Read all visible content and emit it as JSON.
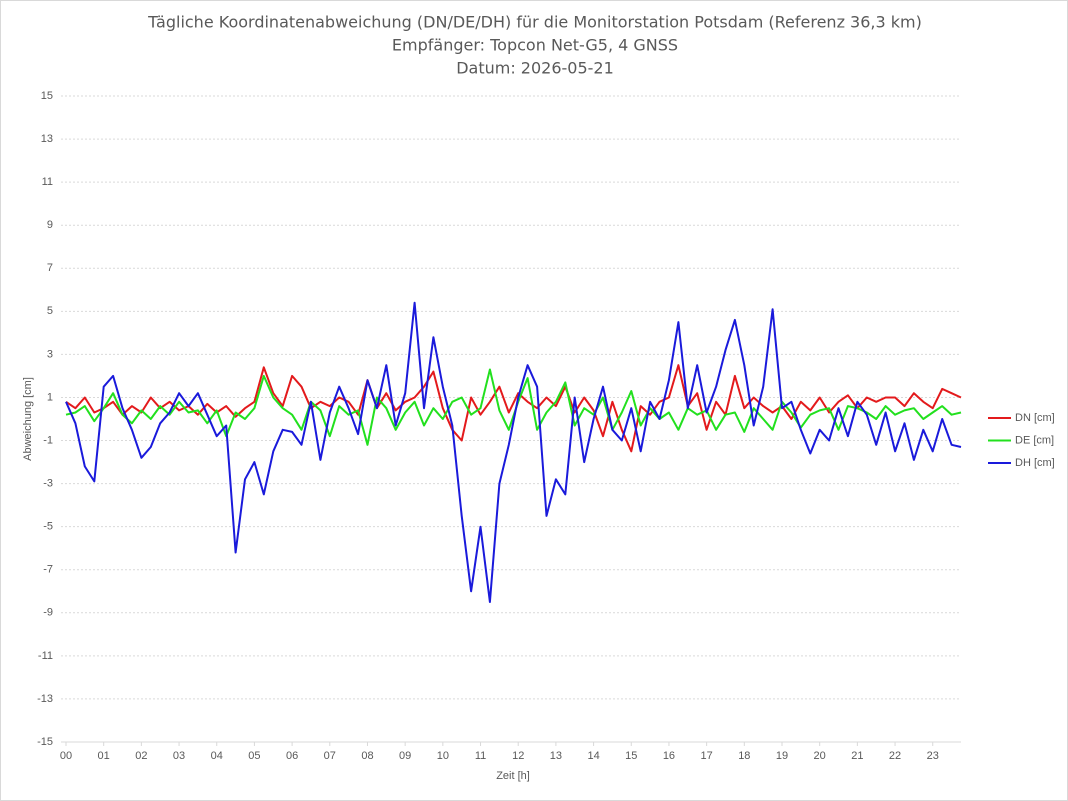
{
  "chart_data": {
    "type": "line",
    "title": "Tägliche Koordinatenabweichung (DN/DE/DH) für die Monitorstation Potsdam (Referenz 36,3 km)",
    "subtitle": "Empfänger: Topcon Net-G5, 4 GNSS",
    "date": "Datum: 2026-05-21",
    "x_label": "Zeit [h]",
    "y_label": "Abweichung [cm]",
    "xlim": [
      0,
      23.75
    ],
    "ylim": [
      -15,
      15
    ],
    "xticks": [
      {
        "value": 0,
        "label": "00"
      },
      {
        "value": 1,
        "label": "01"
      },
      {
        "value": 2,
        "label": "02"
      },
      {
        "value": 3,
        "label": "03"
      },
      {
        "value": 4,
        "label": "04"
      },
      {
        "value": 5,
        "label": "05"
      },
      {
        "value": 6,
        "label": "06"
      },
      {
        "value": 7,
        "label": "07"
      },
      {
        "value": 8,
        "label": "08"
      },
      {
        "value": 9,
        "label": "09"
      },
      10,
      11,
      12,
      13,
      14,
      15,
      16,
      17,
      18,
      19,
      20,
      21,
      22,
      23
    ],
    "yticks": [
      -15,
      -13,
      -11,
      -9,
      -7,
      -5,
      -3,
      -1,
      1,
      3,
      5,
      7,
      9,
      11,
      13,
      15
    ],
    "grid": true,
    "legend": "right",
    "x": [
      0,
      0.25,
      0.5,
      0.75,
      1,
      1.25,
      1.5,
      1.75,
      2,
      2.25,
      2.5,
      2.75,
      3,
      3.25,
      3.5,
      3.75,
      4,
      4.25,
      4.5,
      4.75,
      5,
      5.25,
      5.5,
      5.75,
      6,
      6.25,
      6.5,
      6.75,
      7,
      7.25,
      7.5,
      7.75,
      8,
      8.25,
      8.5,
      8.75,
      9,
      9.25,
      9.5,
      9.75,
      10,
      10.25,
      10.5,
      10.75,
      11,
      11.25,
      11.5,
      11.75,
      12,
      12.25,
      12.5,
      12.75,
      13,
      13.25,
      13.5,
      13.75,
      14,
      14.25,
      14.5,
      14.75,
      15,
      15.25,
      15.5,
      15.75,
      16,
      16.25,
      16.5,
      16.75,
      17,
      17.25,
      17.5,
      17.75,
      18,
      18.25,
      18.5,
      18.75,
      19,
      19.25,
      19.5,
      19.75,
      20,
      20.25,
      20.5,
      20.75,
      21,
      21.25,
      21.5,
      21.75,
      22,
      22.25,
      22.5,
      22.75,
      23,
      23.25,
      23.5,
      23.75
    ],
    "series": [
      {
        "name": "DN [cm]",
        "color": "#e31a1c",
        "values": [
          0.8,
          0.5,
          1.0,
          0.3,
          0.5,
          0.8,
          0.2,
          0.6,
          0.3,
          1.0,
          0.5,
          0.8,
          0.4,
          0.6,
          0.2,
          0.7,
          0.3,
          0.6,
          0.1,
          0.5,
          0.8,
          2.4,
          1.2,
          0.6,
          2.0,
          1.5,
          0.5,
          0.8,
          0.6,
          1.0,
          0.8,
          0.2,
          1.8,
          0.5,
          1.2,
          0.4,
          0.8,
          1.0,
          1.5,
          2.2,
          0.5,
          -0.5,
          -1.0,
          1.0,
          0.2,
          0.8,
          1.5,
          0.3,
          1.2,
          0.8,
          0.5,
          1.0,
          0.6,
          1.5,
          0.3,
          1.0,
          0.4,
          -0.8,
          0.8,
          -0.5,
          -1.5,
          0.6,
          0.2,
          0.8,
          1.0,
          2.5,
          0.6,
          1.2,
          -0.5,
          0.8,
          0.2,
          2.0,
          0.5,
          1.0,
          0.6,
          0.3,
          0.6,
          0.0,
          0.8,
          0.4,
          1.0,
          0.3,
          0.8,
          1.1,
          0.5,
          1.0,
          0.8,
          1.0,
          1.0,
          0.6,
          1.2,
          0.8,
          0.5,
          1.4,
          1.2,
          1.0
        ]
      },
      {
        "name": "DE [cm]",
        "color": "#22e01e",
        "values": [
          0.2,
          0.3,
          0.6,
          -0.1,
          0.5,
          1.2,
          0.2,
          -0.2,
          0.4,
          0.0,
          0.6,
          0.2,
          0.8,
          0.3,
          0.4,
          -0.2,
          0.4,
          -0.8,
          0.3,
          0.0,
          0.5,
          2.0,
          1.0,
          0.5,
          0.2,
          -0.5,
          0.8,
          0.4,
          -0.8,
          0.6,
          0.2,
          0.4,
          -1.2,
          1.0,
          0.5,
          -0.5,
          0.3,
          0.8,
          -0.3,
          0.5,
          0.0,
          0.8,
          1.0,
          0.2,
          0.5,
          2.3,
          0.4,
          -0.5,
          0.8,
          1.9,
          -0.5,
          0.3,
          0.8,
          1.7,
          -0.3,
          0.5,
          0.2,
          1.0,
          -0.5,
          0.3,
          1.3,
          -0.3,
          0.5,
          0.0,
          0.3,
          -0.5,
          0.5,
          0.2,
          0.4,
          -0.5,
          0.2,
          0.3,
          -0.6,
          0.5,
          0.0,
          -0.5,
          0.8,
          0.3,
          -0.4,
          0.2,
          0.4,
          0.5,
          -0.5,
          0.6,
          0.5,
          0.3,
          0.0,
          0.6,
          0.2,
          0.4,
          0.5,
          0.0,
          0.3,
          0.6,
          0.2,
          0.3
        ]
      },
      {
        "name": "DH [cm]",
        "color": "#1a1adb",
        "values": [
          0.8,
          -0.2,
          -2.2,
          -2.9,
          1.5,
          2.0,
          0.5,
          -0.5,
          -1.8,
          -1.3,
          -0.2,
          0.3,
          1.2,
          0.6,
          1.2,
          0.2,
          -0.8,
          -0.3,
          -6.2,
          -2.8,
          -2.0,
          -3.5,
          -1.5,
          -0.5,
          -0.6,
          -1.2,
          0.8,
          -1.9,
          0.3,
          1.5,
          0.5,
          -0.7,
          1.8,
          0.5,
          2.5,
          -0.3,
          1.2,
          5.4,
          0.5,
          3.8,
          1.5,
          -0.3,
          -4.5,
          -8.0,
          -5.0,
          -8.5,
          -3.0,
          -1.2,
          1.0,
          2.5,
          1.5,
          -4.5,
          -2.8,
          -3.5,
          1.0,
          -2.0,
          0.0,
          1.5,
          -0.5,
          -1.0,
          0.5,
          -1.5,
          0.8,
          0.0,
          1.8,
          4.5,
          0.5,
          2.5,
          0.3,
          1.5,
          3.2,
          4.6,
          2.5,
          -0.3,
          1.5,
          5.1,
          0.5,
          0.8,
          -0.5,
          -1.6,
          -0.5,
          -1.0,
          0.5,
          -0.8,
          0.8,
          0.2,
          -1.2,
          0.3,
          -1.5,
          -0.2,
          -1.9,
          -0.5,
          -1.5,
          0.0,
          -1.2,
          -1.3
        ]
      }
    ]
  }
}
